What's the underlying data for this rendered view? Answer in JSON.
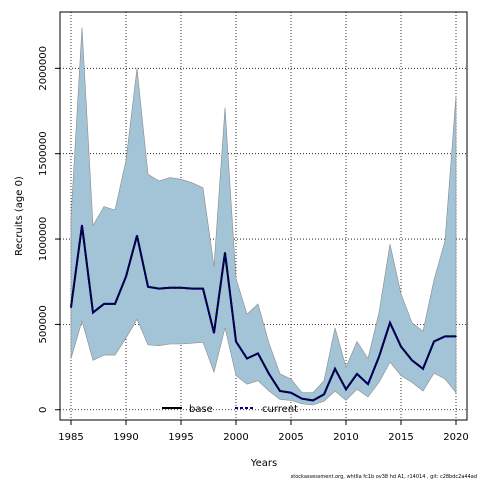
{
  "chart_data": {
    "type": "area",
    "xlabel": "Years",
    "ylabel": "Recruits (age 0)",
    "xlim": [
      1984,
      2021
    ],
    "ylim": [
      -60000,
      2330000
    ],
    "xticks": [
      1985,
      1990,
      1995,
      2000,
      2005,
      2010,
      2015,
      2020
    ],
    "yticks": [
      0,
      500000,
      1000000,
      1500000,
      2000000
    ],
    "ytick_labels": [
      "0",
      "500000",
      "1000000",
      "1500000",
      "2000000"
    ],
    "grid": true,
    "legend": {
      "placement": "bottom-center",
      "entries": [
        {
          "name": "base",
          "line": "solid",
          "color": "#000000"
        },
        {
          "name": "current",
          "line": "dashed",
          "color": "#000080"
        }
      ]
    },
    "colors": {
      "band_fill": "#a3c4d6",
      "band_stroke": "#8a8a8a",
      "current_line": "#000080",
      "base_line": "#000000"
    },
    "x": [
      1985,
      1986,
      1987,
      1988,
      1989,
      1990,
      1991,
      1992,
      1993,
      1994,
      1995,
      1996,
      1997,
      1998,
      1999,
      2000,
      2001,
      2002,
      2003,
      2004,
      2005,
      2006,
      2007,
      2008,
      2009,
      2010,
      2011,
      2012,
      2013,
      2014,
      2015,
      2016,
      2017,
      2018,
      2019,
      2020
    ],
    "series": [
      {
        "name": "current",
        "role": "estimate",
        "values": [
          600000,
          1080000,
          570000,
          620000,
          620000,
          780000,
          1020000,
          720000,
          710000,
          715000,
          715000,
          710000,
          710000,
          450000,
          920000,
          400000,
          300000,
          330000,
          210000,
          110000,
          100000,
          65000,
          55000,
          90000,
          240000,
          120000,
          210000,
          150000,
          310000,
          510000,
          370000,
          290000,
          240000,
          400000,
          430000,
          430000
        ]
      },
      {
        "name": "upper",
        "role": "upper-bound",
        "values": [
          1130000,
          2240000,
          1080000,
          1190000,
          1170000,
          1460000,
          2000000,
          1380000,
          1340000,
          1360000,
          1350000,
          1330000,
          1300000,
          840000,
          1770000,
          770000,
          560000,
          620000,
          390000,
          210000,
          180000,
          100000,
          100000,
          170000,
          480000,
          250000,
          400000,
          300000,
          570000,
          970000,
          680000,
          510000,
          460000,
          760000,
          990000,
          1840000
        ]
      },
      {
        "name": "lower",
        "role": "lower-bound",
        "values": [
          300000,
          520000,
          290000,
          320000,
          320000,
          420000,
          530000,
          380000,
          375000,
          385000,
          385000,
          390000,
          395000,
          220000,
          480000,
          200000,
          150000,
          170000,
          110000,
          60000,
          55000,
          35000,
          28000,
          50000,
          110000,
          55000,
          120000,
          75000,
          160000,
          280000,
          200000,
          160000,
          110000,
          215000,
          180000,
          100000
        ]
      }
    ],
    "footer": "stockassessment.org,  whtIIa  fc1b  ov38  hd  A1,  r14014 ,  git:  c28bdc2a44ad"
  }
}
